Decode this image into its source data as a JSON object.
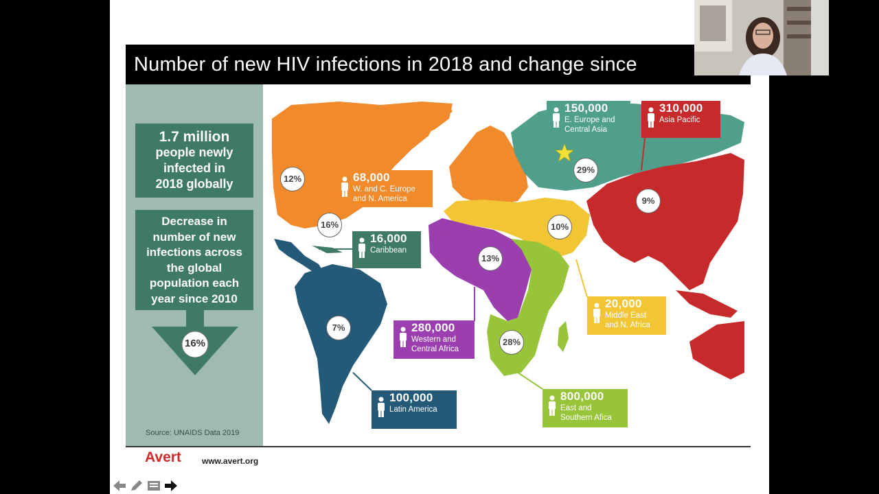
{
  "slide": {
    "title": "Number of new HIV infections in 2018 and change since",
    "stat_total_line1": "1.7 million",
    "stat_total_rest": [
      "people newly",
      "infected in",
      "2018 globally"
    ],
    "decrease_lines": [
      "Decrease in",
      "number of new",
      "infections across",
      "the global",
      "population each",
      "year since 2010"
    ],
    "decrease_pct": "16%",
    "source": "Source: UNAIDS Data 2019",
    "brand": "Avert",
    "brand_url": "www.avert.org"
  },
  "regions": [
    {
      "id": "wce",
      "num": "68,000",
      "region": [
        "W. and C. Europe",
        "and N. America"
      ],
      "pct": "12%",
      "color": "#f08a2a"
    },
    {
      "id": "car",
      "num": "16,000",
      "region": [
        "Caribbean"
      ],
      "pct": "16%",
      "color": "#3f7a64"
    },
    {
      "id": "eeca",
      "num": "150,000",
      "region": [
        "E. Europe and",
        "Central Asia"
      ],
      "pct": "29%",
      "color": "#4f9f8a"
    },
    {
      "id": "ap",
      "num": "310,000",
      "region": [
        "Asia Pacific"
      ],
      "pct": "9%",
      "color": "#c62a2a"
    },
    {
      "id": "mena",
      "num": "20,000",
      "region": [
        "Middle East",
        "and N. Africa"
      ],
      "pct": "10%",
      "color": "#f2c535"
    },
    {
      "id": "wca",
      "num": "280,000",
      "region": [
        "Western and",
        "Central Africa"
      ],
      "pct": "13%",
      "color": "#9b3fb0"
    },
    {
      "id": "esa",
      "num": "800,000",
      "region": [
        "East and",
        "Southern Afica"
      ],
      "pct": "28%",
      "color": "#98c43a"
    },
    {
      "id": "la",
      "num": "100,000",
      "region": [
        "Latin America"
      ],
      "pct": "7%",
      "color": "#245a78"
    }
  ],
  "colors": {
    "panel": "#9fbab3",
    "dark_green": "#3f7a64",
    "title_bg": "#000000",
    "avert_red": "#d22a2a"
  },
  "nav_icons": [
    "arrow-left-icon",
    "pencil-icon",
    "menu-icon",
    "arrow-right-icon"
  ]
}
